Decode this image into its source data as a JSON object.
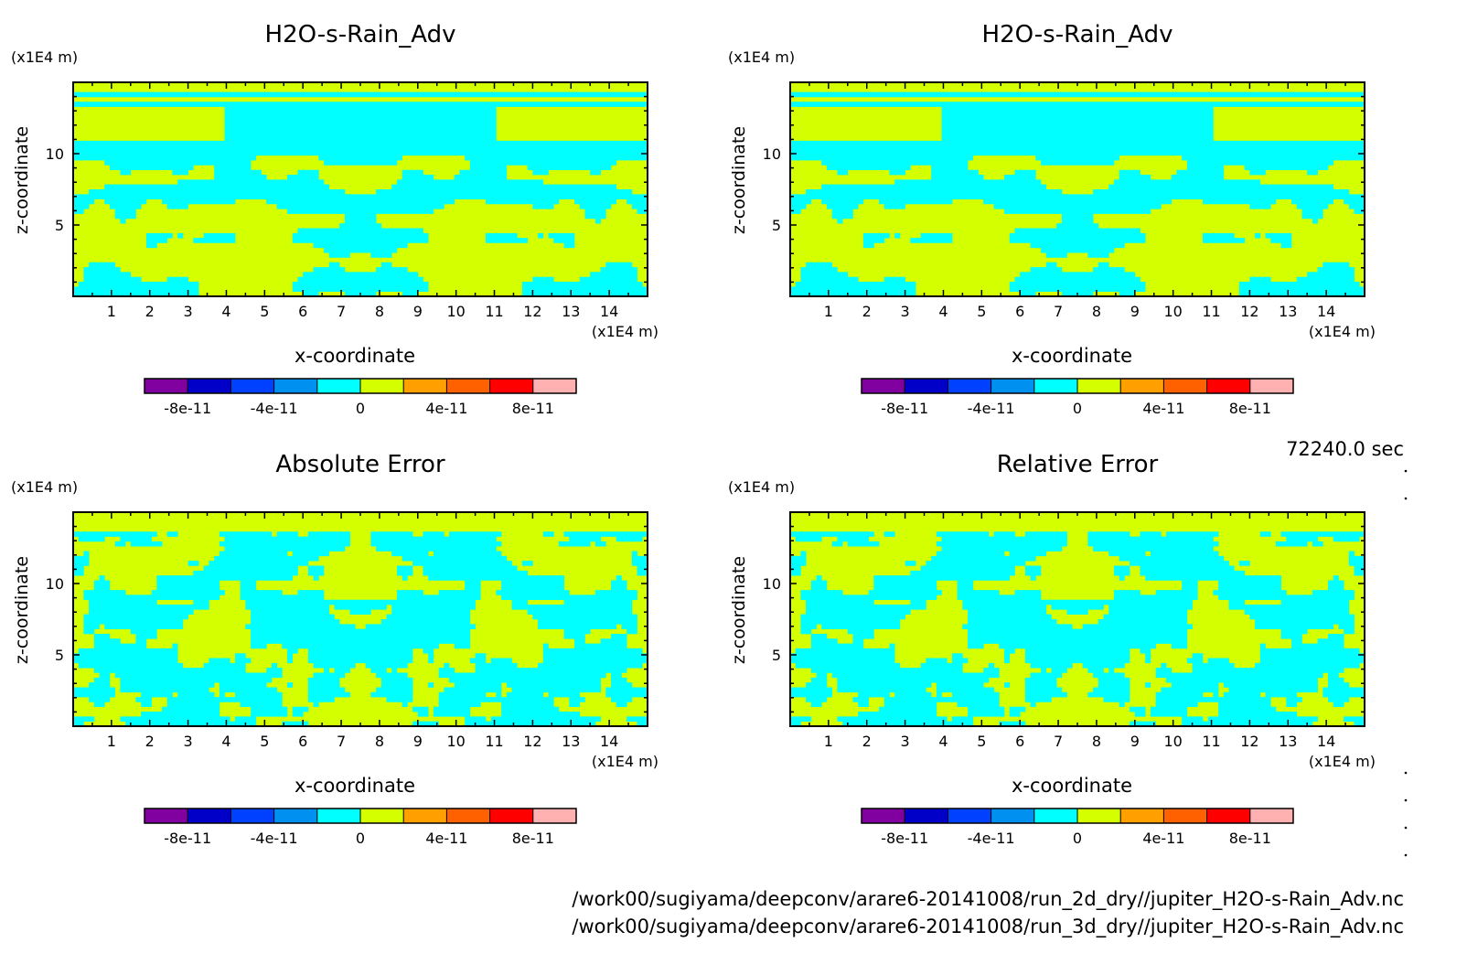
{
  "colors": {
    "cyan": "#00ffff",
    "yellowgreen": "#d4ff00",
    "colorbar": [
      "#8000a0",
      "#0000c8",
      "#0040ff",
      "#0090f0",
      "#00ffff",
      "#d4ff00",
      "#ffa000",
      "#ff6000",
      "#ff0000",
      "#ffb0b0"
    ]
  },
  "chart_data": [
    {
      "type": "heatmap",
      "title": "H2O-s-Rain_Adv",
      "xlabel": "x-coordinate",
      "ylabel": "z-coordinate",
      "x_unit": "(x1E4 m)",
      "y_unit": "(x1E4 m)",
      "xlim": [
        0,
        15
      ],
      "ylim": [
        0,
        15
      ],
      "x_ticks": [
        "1",
        "2",
        "3",
        "4",
        "5",
        "6",
        "7",
        "8",
        "9",
        "10",
        "11",
        "12",
        "13",
        "14"
      ],
      "y_ticks": [
        "5",
        "10"
      ],
      "colorbar": {
        "ticks": [
          "-8e-11",
          "-4e-11",
          "0",
          "4e-11",
          "8e-11"
        ],
        "range": [
          -1e-10,
          1e-10
        ]
      },
      "pattern": "field"
    },
    {
      "type": "heatmap",
      "title": "H2O-s-Rain_Adv",
      "xlabel": "x-coordinate",
      "ylabel": "z-coordinate",
      "x_unit": "(x1E4 m)",
      "y_unit": "(x1E4 m)",
      "xlim": [
        0,
        15
      ],
      "ylim": [
        0,
        15
      ],
      "x_ticks": [
        "1",
        "2",
        "3",
        "4",
        "5",
        "6",
        "7",
        "8",
        "9",
        "10",
        "11",
        "12",
        "13",
        "14"
      ],
      "y_ticks": [
        "5",
        "10"
      ],
      "colorbar": {
        "ticks": [
          "-8e-11",
          "-4e-11",
          "0",
          "4e-11",
          "8e-11"
        ],
        "range": [
          -1e-10,
          1e-10
        ]
      },
      "pattern": "field"
    },
    {
      "type": "heatmap",
      "title": "Absolute Error",
      "xlabel": "x-coordinate",
      "ylabel": "z-coordinate",
      "x_unit": "(x1E4 m)",
      "y_unit": "(x1E4 m)",
      "xlim": [
        0,
        15
      ],
      "ylim": [
        0,
        15
      ],
      "x_ticks": [
        "1",
        "2",
        "3",
        "4",
        "5",
        "6",
        "7",
        "8",
        "9",
        "10",
        "11",
        "12",
        "13",
        "14"
      ],
      "y_ticks": [
        "5",
        "10"
      ],
      "colorbar": {
        "ticks": [
          "-8e-11",
          "-4e-11",
          "0",
          "4e-11",
          "8e-11"
        ],
        "range": [
          -1e-10,
          1e-10
        ]
      },
      "pattern": "error"
    },
    {
      "type": "heatmap",
      "title": "Relative Error",
      "xlabel": "x-coordinate",
      "ylabel": "z-coordinate",
      "x_unit": "(x1E4 m)",
      "y_unit": "(x1E4 m)",
      "xlim": [
        0,
        15
      ],
      "ylim": [
        0,
        15
      ],
      "x_ticks": [
        "1",
        "2",
        "3",
        "4",
        "5",
        "6",
        "7",
        "8",
        "9",
        "10",
        "11",
        "12",
        "13",
        "14"
      ],
      "y_ticks": [
        "5",
        "10"
      ],
      "colorbar": {
        "ticks": [
          "-8e-11",
          "-4e-11",
          "0",
          "4e-11",
          "8e-11"
        ],
        "range": [
          -1e-10,
          1e-10
        ]
      },
      "pattern": "error"
    }
  ],
  "time_label": "72240.0 sec",
  "file_paths": [
    "/work00/sugiyama/deepconv/arare6-20141008/run_2d_dry//jupiter_H2O-s-Rain_Adv.nc",
    "/work00/sugiyama/deepconv/arare6-20141008/run_3d_dry//jupiter_H2O-s-Rain_Adv.nc"
  ]
}
